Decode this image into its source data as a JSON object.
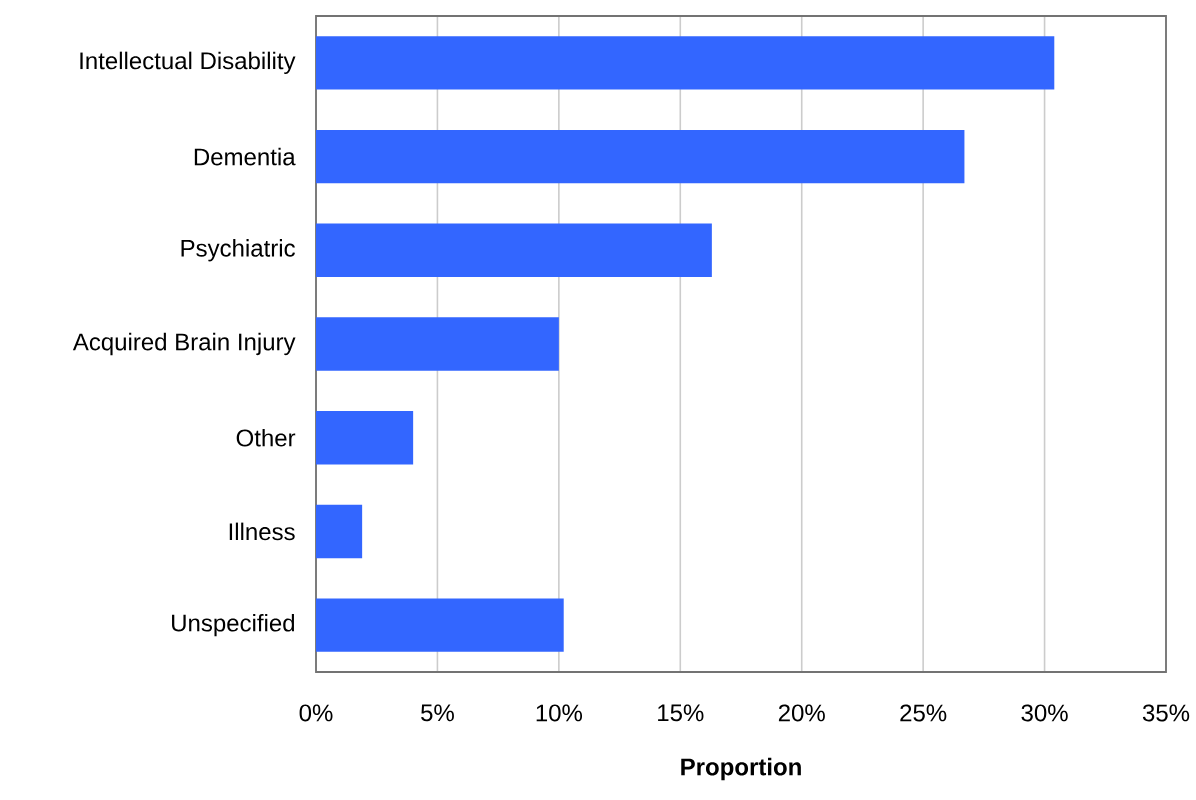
{
  "chart_data": {
    "type": "bar",
    "orientation": "horizontal",
    "xlabel": "Proportion",
    "categories": [
      "Intellectual Disability",
      "Dementia",
      "Psychiatric",
      "Acquired Brain Injury",
      "Other",
      "Illness",
      "Unspecified"
    ],
    "values": [
      30.4,
      26.7,
      16.3,
      10.0,
      4.0,
      1.9,
      10.2
    ],
    "color": "#3366ff",
    "xlim": [
      0,
      35
    ],
    "xticks": [
      {
        "value": 0,
        "label": "0%"
      },
      {
        "value": 5,
        "label": "5%"
      },
      {
        "value": 10,
        "label": "10%"
      },
      {
        "value": 15,
        "label": "15%"
      },
      {
        "value": 20,
        "label": "20%"
      },
      {
        "value": 25,
        "label": "25%"
      },
      {
        "value": 30,
        "label": "30%"
      },
      {
        "value": 35,
        "label": "35%"
      }
    ],
    "grid": "x"
  }
}
